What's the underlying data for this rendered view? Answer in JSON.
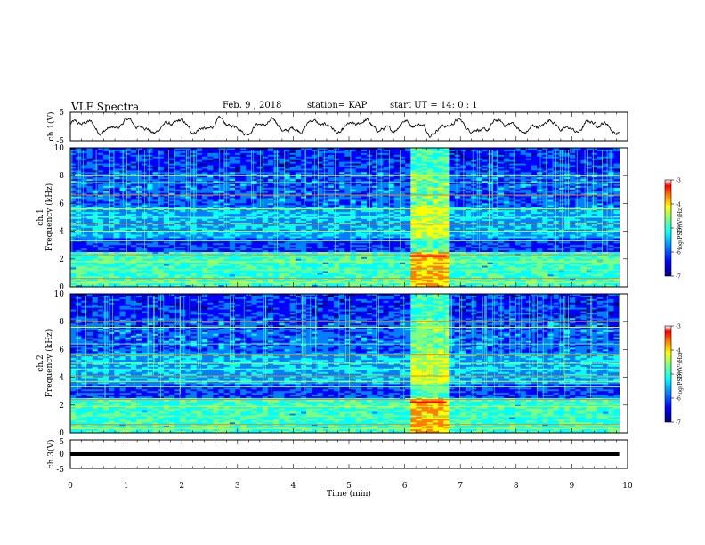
{
  "header": {
    "title": "VLF Spectra",
    "date": "Feb. 9 , 2018",
    "station": "station= KAP",
    "start": "start UT =   14: 0  : 1"
  },
  "chart_data": [
    {
      "type": "line",
      "ylabel": "ch.1(V)",
      "ylim": [
        -5,
        5
      ],
      "yticks": [
        "5",
        "-5"
      ],
      "xlim": [
        0,
        10
      ],
      "description_series": "noisy waveform oscillating around 0 V"
    },
    {
      "type": "heatmap",
      "ylabel_top": "ch.1",
      "ylabel": "Frequency (kHz)",
      "ylim": [
        0,
        10
      ],
      "yticks": [
        "0",
        "2",
        "4",
        "6",
        "8",
        "10"
      ],
      "xlim": [
        0,
        10
      ],
      "data_extent_x": [
        0,
        9.85
      ],
      "burst_x": [
        6.1,
        6.75
      ],
      "colorbar": {
        "label": "log(PSD)(V²/Hz)",
        "range": [
          -7,
          -3
        ],
        "ticks": [
          "-3",
          "-4",
          "-5",
          "-6",
          "-7"
        ]
      },
      "band_freqs_khz": [
        0.3,
        0.6,
        1.2,
        1.8,
        2.3,
        3.3,
        4.0,
        4.5,
        5.0,
        5.6,
        6.6,
        7.5,
        8.0
      ]
    },
    {
      "type": "heatmap",
      "ylabel_top": "ch.2",
      "ylabel": "Frequency (kHz)",
      "ylim": [
        0,
        10
      ],
      "yticks": [
        "0",
        "2",
        "4",
        "6",
        "8",
        "10"
      ],
      "xlim": [
        0,
        10
      ],
      "data_extent_x": [
        0,
        9.85
      ],
      "burst_x": [
        6.1,
        6.75
      ],
      "colorbar": {
        "label": "log(PSD)(V²/Hz)",
        "range": [
          -7,
          -3
        ],
        "ticks": [
          "-3",
          "-4",
          "-5",
          "-6",
          "-7"
        ]
      },
      "band_freqs_khz": [
        0.3,
        0.6,
        1.2,
        1.9,
        2.4,
        3.3,
        3.7,
        4.1,
        4.6,
        5.0,
        5.6,
        6.4,
        7.6,
        8.0
      ]
    },
    {
      "type": "line",
      "ylabel": "ch.3(V)",
      "ylim": [
        -5,
        5
      ],
      "yticks": [
        "5",
        "0",
        "-5"
      ],
      "xlim": [
        0,
        10
      ],
      "constant_value": 0,
      "description_series": "flat thick line near 0 V"
    }
  ],
  "xaxis": {
    "label": "Time (min)",
    "ticks": [
      "0",
      "1",
      "2",
      "3",
      "4",
      "5",
      "6",
      "7",
      "8",
      "9",
      "10"
    ]
  },
  "colors": {
    "line": "#000000",
    "cmap": [
      "#00007f",
      "#0000ff",
      "#007fff",
      "#00ffff",
      "#7fff7f",
      "#ffff00",
      "#ff7f00",
      "#ff0000",
      "#ffffff"
    ]
  }
}
